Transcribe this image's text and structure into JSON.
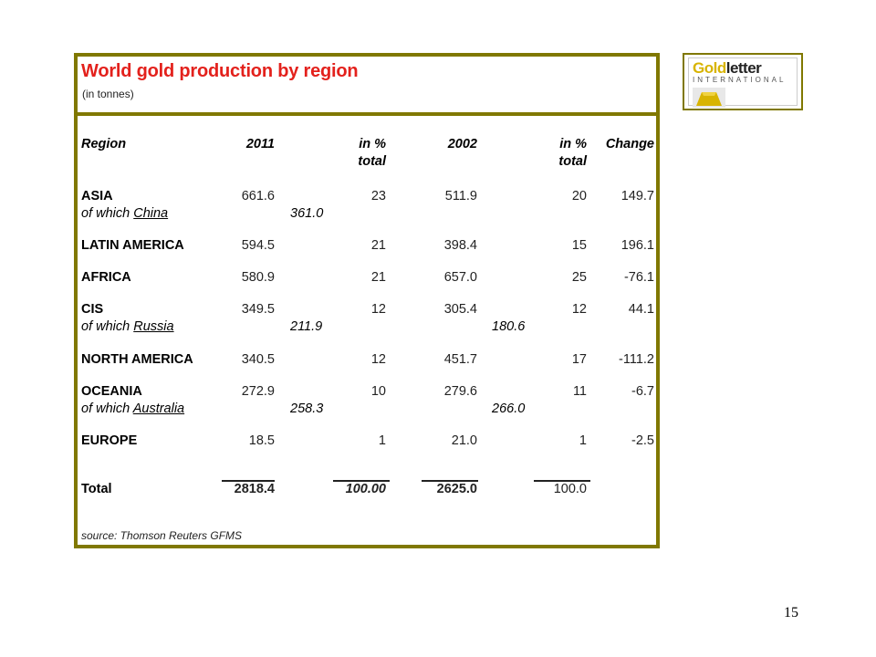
{
  "title": "World gold production by region",
  "subtitle": "(in tonnes)",
  "headers": {
    "region": "Region",
    "y2011": "2011",
    "pct1_a": "in %",
    "pct1_b": "total",
    "y2002": "2002",
    "pct2_a": "in %",
    "pct2_b": "total",
    "change": "Change"
  },
  "rows": [
    {
      "region": "ASIA",
      "v2011": "661.6",
      "pct2011": "23",
      "v2002": "511.9",
      "pct2002": "20",
      "change": "149.7",
      "sub": {
        "prefix": "of which",
        "country": "China",
        "v2011": "361.0",
        "v2002": ""
      }
    },
    {
      "region": "LATIN AMERICA",
      "v2011": "594.5",
      "pct2011": "21",
      "v2002": "398.4",
      "pct2002": "15",
      "change": "196.1"
    },
    {
      "region": "AFRICA",
      "v2011": "580.9",
      "pct2011": "21",
      "v2002": "657.0",
      "pct2002": "25",
      "change": "-76.1"
    },
    {
      "region": "CIS",
      "v2011": "349.5",
      "pct2011": "12",
      "v2002": "305.4",
      "pct2002": "12",
      "change": "44.1",
      "sub": {
        "prefix": "of which",
        "country": "Russia",
        "v2011": "211.9",
        "v2002": "180.6"
      }
    },
    {
      "region": "NORTH AMERICA",
      "v2011": "340.5",
      "pct2011": "12",
      "v2002": "451.7",
      "pct2002": "17",
      "change": "-111.2"
    },
    {
      "region": "OCEANIA",
      "v2011": "272.9",
      "pct2011": "10",
      "v2002": "279.6",
      "pct2002": "11",
      "change": "-6.7",
      "sub": {
        "prefix": "of which",
        "country": "Australia",
        "v2011": "258.3",
        "v2002": "266.0"
      }
    },
    {
      "region": "EUROPE",
      "v2011": "18.5",
      "pct2011": "1",
      "v2002": "21.0",
      "pct2002": "1",
      "change": "-2.5"
    }
  ],
  "total": {
    "label": "Total",
    "v2011": "2818.4",
    "pct2011": "100.00",
    "v2002": "2625.0",
    "pct2002": "100.0"
  },
  "source": "source: Thomson Reuters GFMS",
  "logo": {
    "gold": "Gold",
    "letter": "letter",
    "sub": "INTERNATIONAL"
  },
  "page_number": "15",
  "colors": {
    "frame": "#807800",
    "title": "#e3211c",
    "logo_gold": "#d8b400"
  }
}
